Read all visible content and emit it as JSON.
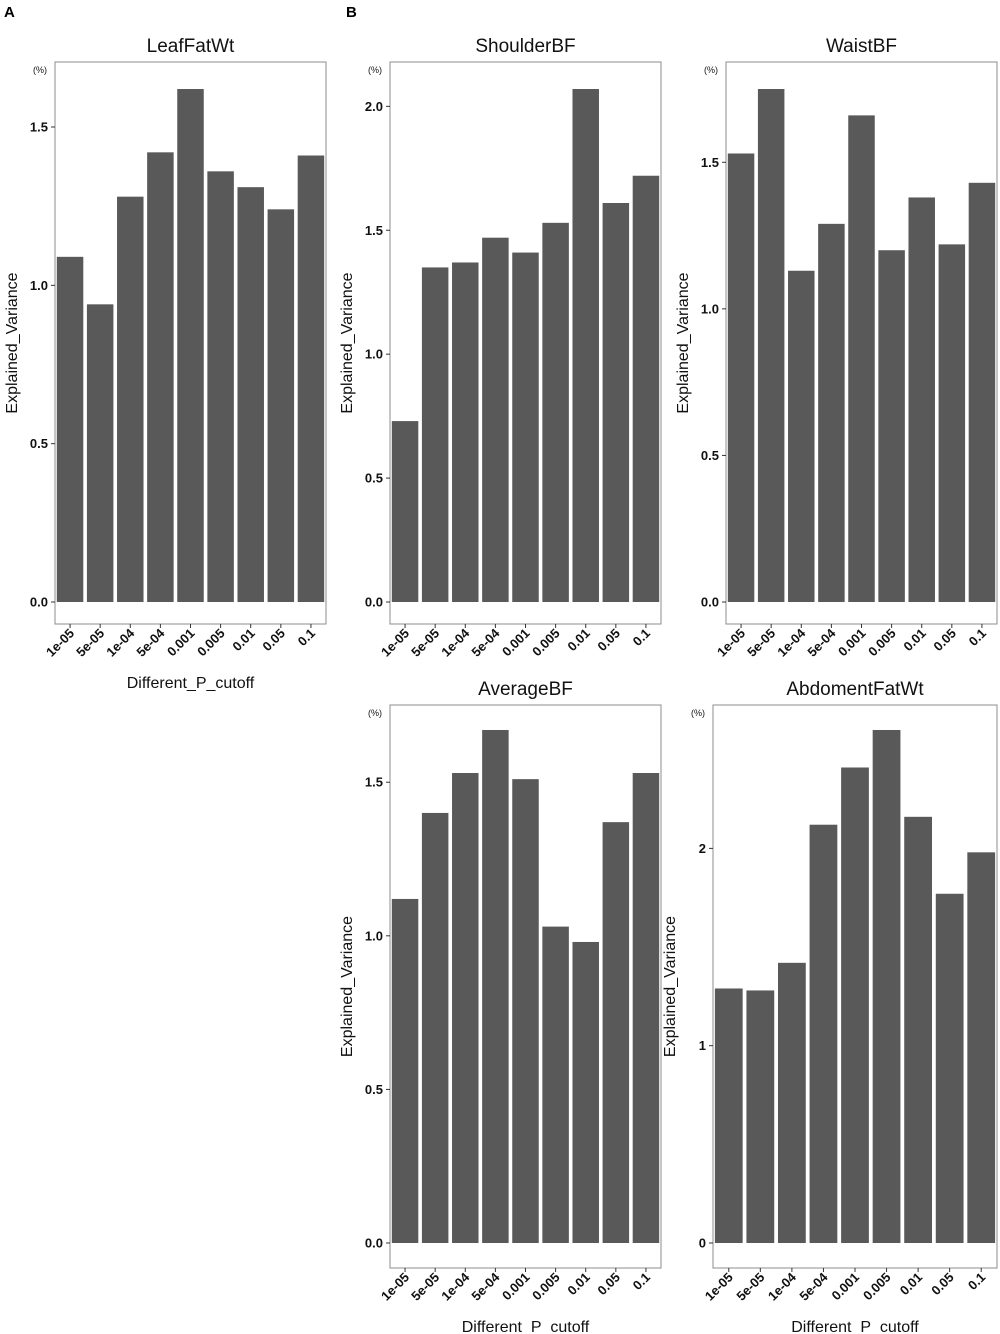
{
  "panel_labels": [
    "A",
    "B"
  ],
  "chart_data": [
    {
      "type": "bar",
      "title": "LeafFatWt",
      "unit": "(%)",
      "xlabel": "Different_P_cutoff",
      "ylabel": "Explained_Variance",
      "categories": [
        "1e-05",
        "5e-05",
        "1e-04",
        "5e-04",
        "0.001",
        "0.005",
        "0.01",
        "0.05",
        "0.1"
      ],
      "values": [
        1.09,
        0.94,
        1.28,
        1.42,
        1.62,
        1.36,
        1.31,
        1.24,
        1.41
      ],
      "yticks": [
        0.0,
        0.5,
        1.0,
        1.5
      ],
      "ytick_labels": [
        "0.0",
        "0.5",
        "1.0",
        "1.5"
      ],
      "ylim": [
        0,
        1.62
      ],
      "grid": false
    },
    {
      "type": "bar",
      "title": "ShoulderBF",
      "unit": "(%)",
      "xlabel": "",
      "ylabel": "Explained_Variance",
      "categories": [
        "1e-05",
        "5e-05",
        "1e-04",
        "5e-04",
        "0.001",
        "0.005",
        "0.01",
        "0.05",
        "0.1"
      ],
      "values": [
        0.73,
        1.35,
        1.37,
        1.47,
        1.41,
        1.53,
        2.07,
        1.61,
        1.72
      ],
      "yticks": [
        0.0,
        0.5,
        1.0,
        1.5,
        2.0
      ],
      "ytick_labels": [
        "0.0",
        "0.5",
        "1.0",
        "1.5",
        "2.0"
      ],
      "ylim": [
        0,
        2.07
      ],
      "grid": false
    },
    {
      "type": "bar",
      "title": "WaistBF",
      "unit": "(%)",
      "xlabel": "",
      "ylabel": "Explained_Variance",
      "categories": [
        "1e-05",
        "5e-05",
        "1e-04",
        "5e-04",
        "0.001",
        "0.005",
        "0.01",
        "0.05",
        "0.1"
      ],
      "values": [
        1.53,
        1.75,
        1.13,
        1.29,
        1.66,
        1.2,
        1.38,
        1.22,
        1.43
      ],
      "yticks": [
        0.0,
        0.5,
        1.0,
        1.5
      ],
      "ytick_labels": [
        "0.0",
        "0.5",
        "1.0",
        "1.5"
      ],
      "ylim": [
        0,
        1.75
      ],
      "grid": false
    },
    {
      "type": "bar",
      "title": "AverageBF",
      "unit": "(%)",
      "xlabel": "Different_P_cutoff",
      "ylabel": "Explained_Variance",
      "categories": [
        "1e-05",
        "5e-05",
        "1e-04",
        "5e-04",
        "0.001",
        "0.005",
        "0.01",
        "0.05",
        "0.1"
      ],
      "values": [
        1.12,
        1.4,
        1.53,
        1.67,
        1.51,
        1.03,
        0.98,
        1.37,
        1.53
      ],
      "yticks": [
        0.0,
        0.5,
        1.0,
        1.5
      ],
      "ytick_labels": [
        "0.0",
        "0.5",
        "1.0",
        "1.5"
      ],
      "ylim": [
        0,
        1.67
      ],
      "grid": false
    },
    {
      "type": "bar",
      "title": "AbdomentFatWt",
      "unit": "(%)",
      "xlabel": "Different_P_cutoff",
      "ylabel": "Explained_Variance",
      "categories": [
        "1e-05",
        "5e-05",
        "1e-04",
        "5e-04",
        "0.001",
        "0.005",
        "0.01",
        "0.05",
        "0.1"
      ],
      "values": [
        1.29,
        1.28,
        1.42,
        2.12,
        2.41,
        2.6,
        2.16,
        1.77,
        1.98
      ],
      "yticks": [
        0,
        1,
        2
      ],
      "ytick_labels": [
        "0",
        "1",
        "2"
      ],
      "ylim": [
        0,
        2.6
      ],
      "grid": false
    }
  ],
  "colors": {
    "bar": "#595959",
    "panel_border": "#8c8c8c",
    "text": "#111111"
  }
}
